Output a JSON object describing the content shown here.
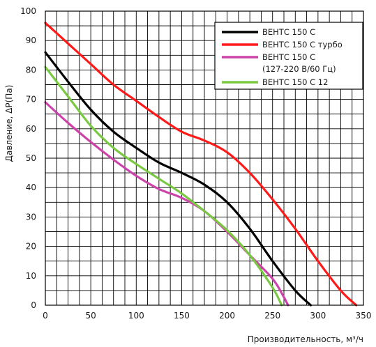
{
  "chart_data": {
    "type": "line",
    "title": "",
    "xlabel": "Производительность, м³/ч",
    "ylabel": "Давление, ΔP(Па)",
    "xlim": [
      0,
      350
    ],
    "ylim": [
      0,
      100
    ],
    "x_ticks": [
      0,
      50,
      100,
      150,
      200,
      250,
      300,
      350
    ],
    "y_ticks": [
      0,
      10,
      20,
      30,
      40,
      50,
      60,
      70,
      80,
      90,
      100
    ],
    "x_ticks_labeled": [
      0,
      50,
      100,
      150,
      200,
      250,
      300,
      350
    ],
    "grid": true,
    "legend_position": "top-right",
    "series": [
      {
        "name": "ВЕНТС 150 С",
        "color": "#000000",
        "x": [
          0,
          25,
          50,
          75,
          100,
          125,
          150,
          175,
          200,
          225,
          250,
          275,
          292
        ],
        "y": [
          86,
          76,
          66.5,
          59,
          53.5,
          48.5,
          45,
          41,
          35,
          26,
          15,
          5,
          0
        ]
      },
      {
        "name": "ВЕНТС 150 С турбо",
        "color": "#ff1a1a",
        "x": [
          0,
          25,
          50,
          75,
          100,
          125,
          150,
          175,
          200,
          225,
          250,
          275,
          300,
          325,
          342
        ],
        "y": [
          96,
          89,
          82,
          75,
          69.5,
          64,
          59,
          56,
          52,
          45,
          36,
          26,
          15,
          5,
          0
        ]
      },
      {
        "name": "ВЕНТС 150 С\n(127-220 В/60 Гц)",
        "color": "#cc44aa",
        "x": [
          0,
          25,
          50,
          75,
          100,
          125,
          150,
          175,
          200,
          225,
          250,
          262,
          267
        ],
        "y": [
          69,
          62,
          55.5,
          49.5,
          44,
          39.5,
          36.5,
          32,
          25,
          17,
          9,
          3,
          0
        ]
      },
      {
        "name": "ВЕНТС 150 С 12",
        "color": "#7ac943",
        "x": [
          0,
          25,
          50,
          75,
          100,
          125,
          150,
          175,
          200,
          225,
          250,
          260
        ],
        "y": [
          81,
          71,
          61,
          53.5,
          48,
          43,
          38,
          32,
          25.5,
          17,
          6,
          0
        ]
      }
    ]
  }
}
